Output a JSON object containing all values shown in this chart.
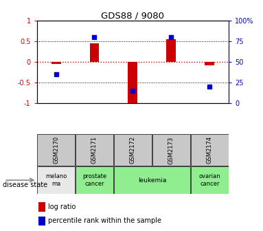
{
  "title": "GDS88 / 9080",
  "samples": [
    "GSM2170",
    "GSM2171",
    "GSM2172",
    "GSM2173",
    "GSM2174"
  ],
  "log_ratios": [
    -0.05,
    0.45,
    -1.0,
    0.55,
    -0.08
  ],
  "percentile_ranks": [
    35,
    80,
    15,
    80,
    20
  ],
  "ylim_left": [
    -1,
    1
  ],
  "ylim_right": [
    0,
    100
  ],
  "sample_bg": "#C8C8C8",
  "melanoma_bg": "#E8E8E8",
  "disease_green": "#90EE90",
  "bar_color": "#CC0000",
  "dot_color": "#0000CC",
  "right_axis_color": "#0000CC",
  "left_axis_color": "#CC0000",
  "legend_bar_label": "log ratio",
  "legend_dot_label": "percentile rank within the sample",
  "disease_label": "disease state",
  "disease_groups": [
    [
      0,
      0,
      "melano\nma",
      "#E8E8E8"
    ],
    [
      1,
      1,
      "prostate\ncancer",
      "#90EE90"
    ],
    [
      2,
      3,
      "leukemia",
      "#90EE90"
    ],
    [
      4,
      4,
      "ovarian\ncancer",
      "#90EE90"
    ]
  ]
}
